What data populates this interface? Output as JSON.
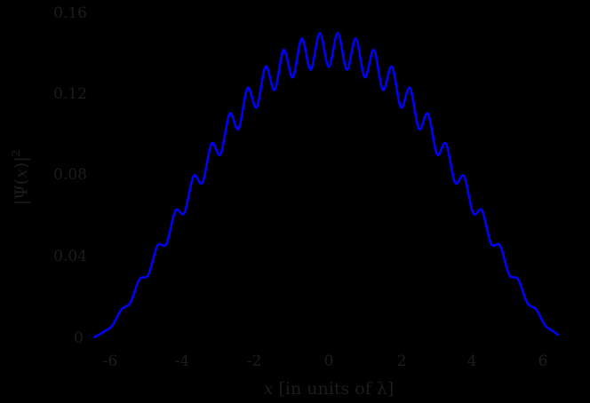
{
  "chart_data": {
    "type": "line",
    "title": "",
    "xlabel": "x [in units of λ]",
    "xlabel_parts": {
      "var": "x",
      "rest": " [in units of λ]"
    },
    "ylabel": "|Ψ(x)|²",
    "ylabel_parts": {
      "open": "|Ψ(",
      "var": "x",
      "close": ")|",
      "sup": "2"
    },
    "xlim": [
      -6.6,
      6.5
    ],
    "ylim": [
      0,
      0.16
    ],
    "xticks": [
      -6,
      -4,
      -2,
      0,
      2,
      4,
      6
    ],
    "xtick_labels": [
      "-6",
      "-4",
      "-2",
      "0",
      "2",
      "4",
      "6"
    ],
    "yticks": [
      0,
      0.04,
      0.08,
      0.12,
      0.16
    ],
    "ytick_labels": [
      "0",
      "0.04",
      "0.08",
      "0.12",
      "0.16"
    ],
    "grid": false,
    "legend": null,
    "background": "#000000",
    "text_color": "#1c1c1c",
    "series": [
      {
        "name": "|Ψ(x)|²",
        "color": "#0000ff",
        "line_width": 2.5,
        "x": [
          -6.5,
          -6.25,
          -6.0,
          -5.75,
          -5.5,
          -5.25,
          -5.0,
          -4.75,
          -4.5,
          -4.25,
          -4.0,
          -3.75,
          -3.5,
          -3.25,
          -3.0,
          -2.75,
          -2.5,
          -2.25,
          -2.0,
          -1.75,
          -1.5,
          -1.25,
          -1.0,
          -0.75,
          -0.5,
          -0.25,
          0.0,
          0.25,
          0.5,
          0.75,
          1.0,
          1.25,
          1.5,
          1.75,
          2.0,
          2.25,
          2.5,
          2.75,
          3.0,
          3.25,
          3.5,
          3.75,
          4.0,
          4.25,
          4.5,
          4.75,
          5.0,
          5.25,
          5.5,
          5.75,
          6.0,
          6.25,
          6.35
        ],
        "y": [
          0.0,
          0.0026,
          0.0058,
          0.0137,
          0.017,
          0.0285,
          0.0308,
          0.0451,
          0.046,
          0.0623,
          0.0612,
          0.0793,
          0.0761,
          0.0953,
          0.09,
          0.11,
          0.1025,
          0.1227,
          0.1131,
          0.1332,
          0.1217,
          0.1414,
          0.1279,
          0.1469,
          0.1317,
          0.1497,
          0.133,
          0.1497,
          0.1317,
          0.1469,
          0.1279,
          0.1414,
          0.1217,
          0.1332,
          0.1131,
          0.1227,
          0.1025,
          0.11,
          0.09,
          0.0953,
          0.0761,
          0.0793,
          0.0612,
          0.0623,
          0.046,
          0.0451,
          0.0308,
          0.0285,
          0.017,
          0.0137,
          0.0058,
          0.0026,
          0.0012
        ]
      }
    ]
  }
}
